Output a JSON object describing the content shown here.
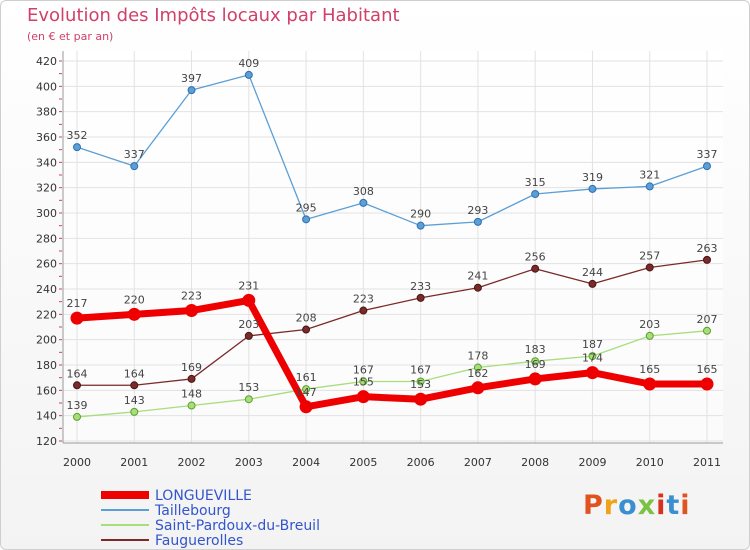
{
  "title": "Evolution des Impôts locaux par Habitant",
  "subtitle": "(en € et par an)",
  "logo": {
    "text": "Proxiti",
    "colors": [
      "#e0531f",
      "#f0a31a",
      "#3a8fd0",
      "#7cc242",
      "#d8321f",
      "#3a8fd0",
      "#e0531f"
    ]
  },
  "chart_data": {
    "type": "line",
    "x": [
      "2000",
      "2001",
      "2002",
      "2003",
      "2004",
      "2005",
      "2006",
      "2007",
      "2008",
      "2009",
      "2010",
      "2011"
    ],
    "ylim": [
      120,
      420
    ],
    "yticks": [
      120,
      140,
      160,
      180,
      200,
      220,
      240,
      260,
      280,
      300,
      320,
      340,
      360,
      380,
      400,
      420
    ],
    "grid": true,
    "legend_position": "bottom-left",
    "series": [
      {
        "name": "LONGUEVILLE",
        "color": "#ee0000",
        "values": [
          217,
          220,
          223,
          231,
          147,
          155,
          153,
          162,
          169,
          174,
          165,
          165
        ],
        "labels": [
          "217",
          "220",
          "223",
          "231",
          "147",
          "155",
          "153",
          "162",
          "169",
          "174",
          "165",
          "165"
        ]
      },
      {
        "name": "Taillebourg",
        "color": "#5b9fd6",
        "values": [
          352,
          337,
          397,
          409,
          295,
          308,
          290,
          293,
          315,
          319,
          321,
          337
        ],
        "labels": [
          "352",
          "337",
          "397",
          "409",
          "295",
          "308",
          "290",
          "293",
          "315",
          "319",
          "321",
          "337"
        ]
      },
      {
        "name": "Saint-Pardoux-du-Breuil",
        "color": "#a8dd7c",
        "values": [
          139,
          143,
          148,
          153,
          161,
          167,
          167,
          178,
          183,
          187,
          203,
          207
        ],
        "labels": [
          "139",
          "143",
          "148",
          "153",
          "161",
          "167",
          "167",
          "178",
          "183",
          "187",
          "203",
          "207"
        ]
      },
      {
        "name": "Fauguerolles",
        "color": "#7b2a2a",
        "values": [
          164,
          164,
          169,
          203,
          208,
          223,
          233,
          241,
          256,
          244,
          257,
          263
        ],
        "labels": [
          "164",
          "164",
          "169",
          "203",
          "208",
          "223",
          "233",
          "241",
          "256",
          "244",
          "257",
          "263"
        ]
      }
    ]
  }
}
